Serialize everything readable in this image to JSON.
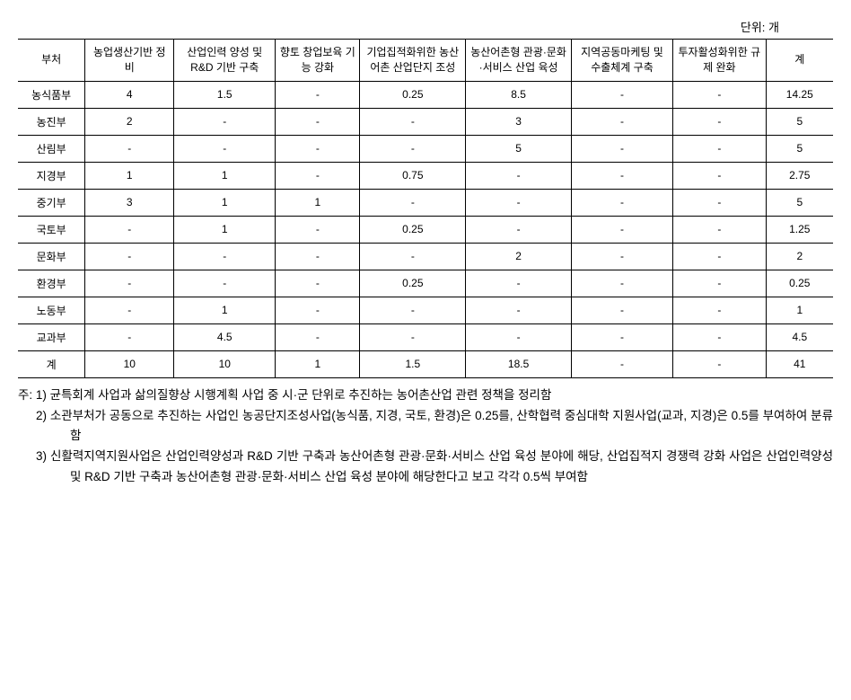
{
  "unit_label": "단위: 개",
  "headers": {
    "dept": "부처",
    "c1": "농업생산기반 정비",
    "c2": "산업인력 양성 및 R&D 기반 구축",
    "c3": "향토 창업보육 기능 강화",
    "c4": "기업집적화위한 농산어촌 산업단지 조성",
    "c5": "농산어촌형 관광·문화·서비스 산업 육성",
    "c6": "지역공동마케팅 및 수출체계 구축",
    "c7": "투자활성화위한 규제 완화",
    "total": "계"
  },
  "rows": [
    {
      "dept": "농식품부",
      "c1": "4",
      "c2": "1.5",
      "c3": "-",
      "c4": "0.25",
      "c5": "8.5",
      "c6": "-",
      "c7": "-",
      "total": "14.25"
    },
    {
      "dept": "농진부",
      "c1": "2",
      "c2": "-",
      "c3": "-",
      "c4": "-",
      "c5": "3",
      "c6": "-",
      "c7": "-",
      "total": "5"
    },
    {
      "dept": "산림부",
      "c1": "-",
      "c2": "-",
      "c3": "-",
      "c4": "-",
      "c5": "5",
      "c6": "-",
      "c7": "-",
      "total": "5"
    },
    {
      "dept": "지경부",
      "c1": "1",
      "c2": "1",
      "c3": "-",
      "c4": "0.75",
      "c5": "-",
      "c6": "-",
      "c7": "-",
      "total": "2.75"
    },
    {
      "dept": "중기부",
      "c1": "3",
      "c2": "1",
      "c3": "1",
      "c4": "-",
      "c5": "-",
      "c6": "-",
      "c7": "-",
      "total": "5"
    },
    {
      "dept": "국토부",
      "c1": "-",
      "c2": "1",
      "c3": "-",
      "c4": "0.25",
      "c5": "-",
      "c6": "-",
      "c7": "-",
      "total": "1.25"
    },
    {
      "dept": "문화부",
      "c1": "-",
      "c2": "-",
      "c3": "-",
      "c4": "-",
      "c5": "2",
      "c6": "-",
      "c7": "-",
      "total": "2"
    },
    {
      "dept": "환경부",
      "c1": "-",
      "c2": "-",
      "c3": "-",
      "c4": "0.25",
      "c5": "-",
      "c6": "-",
      "c7": "-",
      "total": "0.25"
    },
    {
      "dept": "노동부",
      "c1": "-",
      "c2": "1",
      "c3": "-",
      "c4": "-",
      "c5": "-",
      "c6": "-",
      "c7": "-",
      "total": "1"
    },
    {
      "dept": "교과부",
      "c1": "-",
      "c2": "4.5",
      "c3": "-",
      "c4": "-",
      "c5": "-",
      "c6": "-",
      "c7": "-",
      "total": "4.5"
    },
    {
      "dept": "계",
      "c1": "10",
      "c2": "10",
      "c3": "1",
      "c4": "1.5",
      "c5": "18.5",
      "c6": "-",
      "c7": "-",
      "total": "41"
    }
  ],
  "notes": {
    "prefix": "주: ",
    "n1": "1) 균특회계 사업과 삶의질향상 시행계획 사업 중 시·군 단위로 추진하는 농어촌산업 관련 정책을 정리함",
    "n2": "2) 소관부처가 공동으로 추진하는 사업인 농공단지조성사업(농식품, 지경, 국토, 환경)은 0.25를, 산학협력 중심대학 지원사업(교과, 지경)은 0.5를 부여하여 분류함",
    "n3": "3) 신활력지역지원사업은 산업인력양성과 R&D 기반 구축과 농산어촌형 관광·문화·서비스 산업 육성 분야에 해당, 산업집적지 경쟁력 강화 사업은 산업인력양성 및 R&D 기반 구축과 농산어촌형 관광·문화·서비스 산업 육성 분야에 해당한다고 보고 각각 0.5씩 부여함"
  }
}
